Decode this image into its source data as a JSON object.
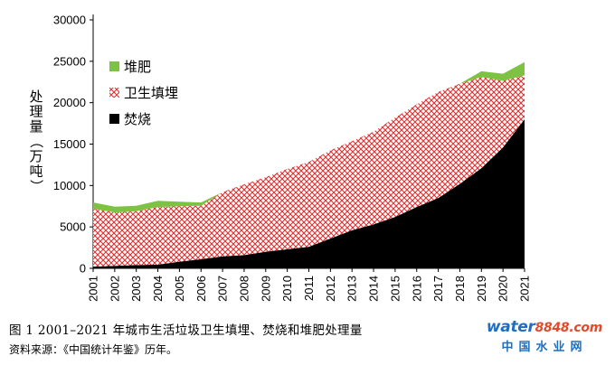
{
  "chart_data": {
    "type": "area",
    "stacked": true,
    "title": "",
    "ylabel": "处理量（万吨）",
    "xlabel": "",
    "ylim": [
      0,
      30000
    ],
    "yticks": [
      0,
      5000,
      10000,
      15000,
      20000,
      25000,
      30000
    ],
    "x": [
      "2001",
      "2002",
      "2003",
      "2004",
      "2005",
      "2006",
      "2007",
      "2008",
      "2009",
      "2010",
      "2011",
      "2012",
      "2013",
      "2014",
      "2015",
      "2016",
      "2017",
      "2018",
      "2019",
      "2020",
      "2021"
    ],
    "series": [
      {
        "name": "焚烧",
        "color": "#000000",
        "pattern": "solid",
        "values": [
          200,
          300,
          400,
          450,
          800,
          1100,
          1450,
          1600,
          2000,
          2300,
          2600,
          3600,
          4600,
          5300,
          6200,
          7400,
          8500,
          10200,
          12100,
          14600,
          18000
        ]
      },
      {
        "name": "卫生填埋",
        "color": "#e03030",
        "pattern": "crosshatch",
        "values": [
          7000,
          6450,
          6500,
          6950,
          6700,
          6450,
          7750,
          8550,
          9000,
          9700,
          10250,
          10650,
          10750,
          11200,
          12000,
          12400,
          12800,
          12100,
          11000,
          8050,
          5300
        ]
      },
      {
        "name": "堆肥",
        "color": "#7dc242",
        "pattern": "solid",
        "values": [
          750,
          700,
          650,
          750,
          550,
          400,
          0,
          0,
          0,
          0,
          0,
          0,
          0,
          0,
          0,
          0,
          0,
          0,
          700,
          850,
          1600
        ]
      }
    ],
    "legend": [
      "堆肥",
      "卫生填埋",
      "焚烧"
    ],
    "legend_position": "top-left"
  },
  "caption": "图 1 2001–2021 年城市生活垃圾卫生填埋、焚烧和堆肥处理量",
  "source": "资料来源：《中国统计年鉴》历年。",
  "watermark": {
    "brand": "water",
    "number": "8848",
    "suffix": ".com",
    "subtitle": "中国水业网"
  }
}
